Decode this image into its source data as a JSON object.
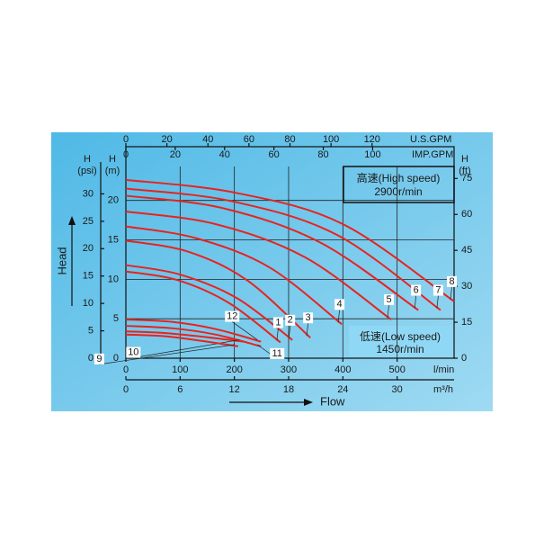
{
  "chart_data": {
    "type": "line",
    "x_axis_label": "Flow",
    "y_axis_label": "Head",
    "xlim": [
      0,
      605
    ],
    "xticks": [
      0,
      100,
      200,
      300,
      400,
      500
    ],
    "x_unit": "l/min",
    "x2": {
      "unit": "m³/h",
      "lim": [
        0,
        36.3
      ],
      "ticks": [
        0,
        6,
        12,
        18,
        24,
        30
      ]
    },
    "x3": {
      "unit": "U.S.GPM",
      "lim": [
        0,
        160
      ],
      "ticks": [
        0,
        20,
        40,
        60,
        80,
        100,
        120
      ]
    },
    "x4": {
      "unit": "IMP.GPM",
      "lim": [
        0,
        133
      ],
      "ticks": [
        0,
        20,
        40,
        60,
        80,
        100
      ]
    },
    "ylim": [
      0,
      24.3
    ],
    "yticks": [
      0,
      5,
      10,
      15,
      20
    ],
    "y_head": "H",
    "y_unit": "(m)",
    "psi": {
      "head": "H",
      "unit": "(psi)",
      "lim": [
        0,
        35
      ],
      "ticks": [
        0,
        5,
        10,
        15,
        20,
        25,
        30
      ]
    },
    "y2lim": [
      0,
      80
    ],
    "y2ticks": [
      0,
      15,
      30,
      45,
      60,
      75
    ],
    "y2_head": "H",
    "y2_unit": "(ft)",
    "grid": true,
    "high_speed": {
      "title": "高速(High speed)",
      "rpm": "2900r/min"
    },
    "low_speed": {
      "title": "低速(Low speed)",
      "rpm": "1450r/min"
    },
    "series": [
      {
        "name": "8",
        "color": "#e8231e",
        "x": [
          0,
          200,
          400,
          605
        ],
        "values": [
          22.6,
          21.0,
          17.0,
          7.2
        ]
      },
      {
        "name": "7",
        "color": "#e8231e",
        "x": [
          0,
          195,
          390,
          580
        ],
        "values": [
          21.5,
          19.9,
          15.6,
          6.1
        ]
      },
      {
        "name": "6",
        "color": "#e8231e",
        "x": [
          0,
          180,
          360,
          539
        ],
        "values": [
          20.6,
          19.0,
          14.6,
          6.1
        ]
      },
      {
        "name": "5",
        "color": "#e8231e",
        "x": [
          0,
          165,
          330,
          489
        ],
        "values": [
          18.6,
          17.0,
          12.8,
          4.9
        ]
      },
      {
        "name": "4",
        "color": "#e8231e",
        "x": [
          0,
          130,
          265,
          398
        ],
        "values": [
          16.7,
          15.2,
          11.5,
          4.3
        ]
      },
      {
        "name": "3",
        "color": "#e8231e",
        "x": [
          0,
          115,
          225,
          340
        ],
        "values": [
          14.9,
          13.5,
          9.8,
          2.6
        ]
      },
      {
        "name": "2",
        "color": "#e8231e",
        "x": [
          0,
          100,
          205,
          307
        ],
        "values": [
          11.8,
          10.6,
          7.6,
          2.3
        ]
      },
      {
        "name": "1",
        "color": "#e8231e",
        "x": [
          0,
          95,
          190,
          285
        ],
        "values": [
          11.0,
          9.9,
          7.0,
          2.0
        ]
      },
      {
        "name": "12",
        "color": "#e8231e",
        "x": [
          0,
          85,
          165,
          249
        ],
        "values": [
          4.9,
          4.6,
          3.7,
          2.1
        ]
      },
      {
        "name": "11",
        "color": "#e8231e",
        "x": [
          0,
          85,
          165,
          249
        ],
        "values": [
          4.1,
          3.8,
          3.0,
          1.5
        ]
      },
      {
        "name": "10",
        "color": "#e8231e",
        "x": [
          0,
          70,
          145,
          216
        ],
        "values": [
          3.4,
          3.2,
          2.7,
          2.1
        ]
      },
      {
        "name": "9",
        "color": "#e8231e",
        "x": [
          0,
          70,
          140,
          207
        ],
        "values": [
          3.0,
          2.8,
          2.2,
          1.5
        ]
      }
    ]
  }
}
